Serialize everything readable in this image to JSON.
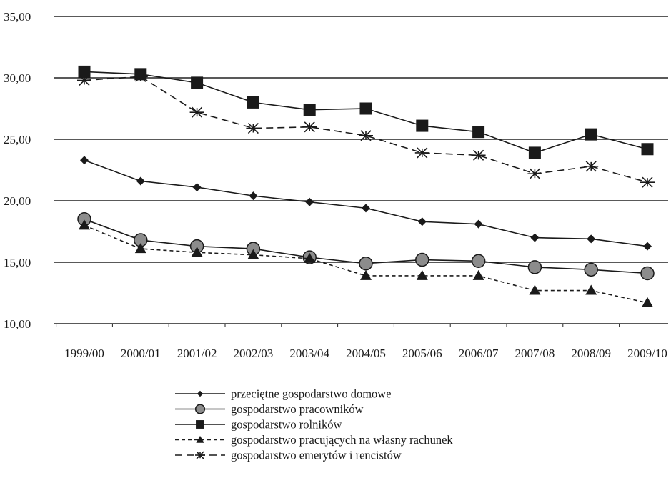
{
  "chart_data": {
    "type": "line",
    "categories": [
      "1999/00",
      "2000/01",
      "2001/02",
      "2002/03",
      "2003/04",
      "2004/05",
      "2005/06",
      "2006/07",
      "2007/08",
      "2008/09",
      "2009/10"
    ],
    "ylim": [
      10,
      35
    ],
    "yticks": [
      "10,00",
      "15,00",
      "20,00",
      "25,00",
      "30,00",
      "35,00"
    ],
    "grid": "horizontal",
    "legend_position": "bottom",
    "series": [
      {
        "name": "przeciętne gospodarstwo domowe",
        "marker": "diamond",
        "dash": "solid",
        "color": "#1a1a1a",
        "values": [
          23.3,
          21.6,
          21.1,
          20.4,
          19.9,
          19.4,
          18.3,
          18.1,
          17.0,
          16.9,
          16.3
        ]
      },
      {
        "name": "gospodarstwo pracowników",
        "marker": "circle",
        "dash": "solid",
        "color": "#1a1a1a",
        "values": [
          18.5,
          16.8,
          16.3,
          16.1,
          15.4,
          14.9,
          15.2,
          15.1,
          14.6,
          14.4,
          14.1
        ]
      },
      {
        "name": "gospodarstwo rolników",
        "marker": "square",
        "dash": "solid",
        "color": "#1a1a1a",
        "values": [
          30.5,
          30.3,
          29.6,
          28.0,
          27.4,
          27.5,
          26.1,
          25.6,
          23.9,
          25.4,
          24.2
        ]
      },
      {
        "name": "gospodarstwo pracujących na własny rachunek",
        "marker": "triangle",
        "dash": "short",
        "color": "#1a1a1a",
        "values": [
          18.0,
          16.1,
          15.8,
          15.6,
          15.3,
          13.9,
          13.9,
          13.9,
          12.7,
          12.7,
          11.7
        ]
      },
      {
        "name": "gospodarstwo emerytów i rencistów",
        "marker": "asterisk",
        "dash": "long",
        "color": "#1a1a1a",
        "values": [
          29.8,
          30.1,
          27.2,
          25.9,
          26.0,
          25.3,
          23.9,
          23.7,
          22.2,
          22.8,
          21.5
        ]
      }
    ]
  }
}
